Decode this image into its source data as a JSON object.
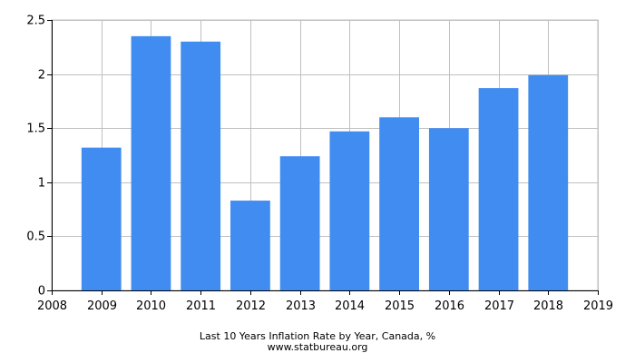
{
  "chart_data": {
    "type": "bar",
    "title": "Last 10 Years Inflation Rate by Year, Canada, %",
    "source": "www.statbureau.org",
    "categories": [
      "2009",
      "2010",
      "2011",
      "2012",
      "2013",
      "2014",
      "2015",
      "2016",
      "2017",
      "2018"
    ],
    "values": [
      1.32,
      2.35,
      2.3,
      0.83,
      1.24,
      1.47,
      1.6,
      1.5,
      1.87,
      1.99
    ],
    "x_ticks": [
      "2008",
      "2009",
      "2010",
      "2011",
      "2012",
      "2013",
      "2014",
      "2015",
      "2016",
      "2017",
      "2018",
      "2019"
    ],
    "y_ticks": [
      "0",
      "0.5",
      "1",
      "1.5",
      "2",
      "2.5"
    ],
    "ylim": [
      0,
      2.5
    ],
    "xlabel": "",
    "ylabel": "",
    "grid": true,
    "bar_color": "#418cf0",
    "grid_color": "#c0c0c0"
  }
}
